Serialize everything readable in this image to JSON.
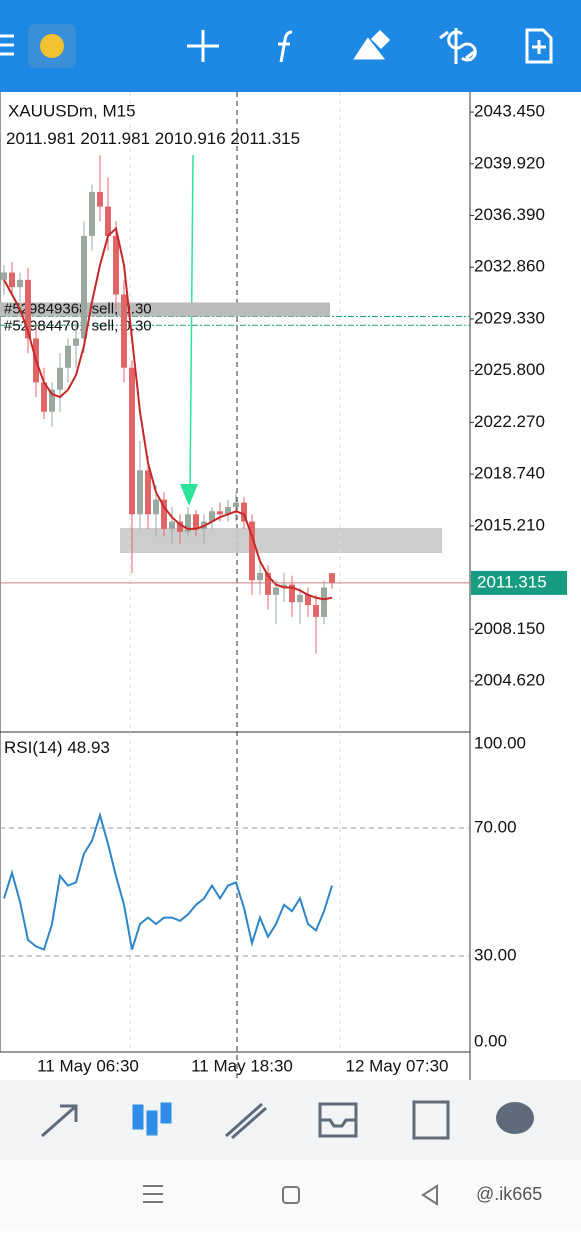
{
  "app": {
    "symbol": "XAUUSDm, M15",
    "orders": [
      {
        "label": "#529849368 sell, 0.30",
        "price": 2029.5
      },
      {
        "label": "#529844701 sell, 0.30",
        "price": 2028.9
      }
    ],
    "watermark": "@.ik665"
  },
  "chart_data": {
    "type": "candlestick",
    "ma_color": "#c62828",
    "up_color": "#9aa89e",
    "down_color": "#e06666",
    "ylim": [
      2001.14,
      2044.82
    ],
    "yticks": [
      {
        "value": 2043.45,
        "label": "2043.450"
      },
      {
        "value": 2039.92,
        "label": "2039.920"
      },
      {
        "value": 2036.39,
        "label": "2036.390"
      },
      {
        "value": 2032.86,
        "label": "2032.860"
      },
      {
        "value": 2029.33,
        "label": "2029.330"
      },
      {
        "value": 2025.8,
        "label": "2025.800"
      },
      {
        "value": 2022.27,
        "label": "2022.270"
      },
      {
        "value": 2018.74,
        "label": "2018.740"
      },
      {
        "value": 2015.21,
        "label": "2015.210"
      },
      {
        "value": 2008.15,
        "label": "2008.150"
      },
      {
        "value": 2004.62,
        "label": "2004.620"
      }
    ],
    "x_labels": [
      "11 May 06:30",
      "11 May 18:30",
      "12 May 07:30"
    ],
    "candles": [
      [
        2032,
        2033,
        2031,
        2032.5
      ],
      [
        2032.5,
        2033.2,
        2031,
        2031.5
      ],
      [
        2031.5,
        2032.5,
        2030.5,
        2032
      ],
      [
        2032,
        2032.8,
        2027,
        2028
      ],
      [
        2028,
        2029,
        2024,
        2025
      ],
      [
        2025,
        2026,
        2022.5,
        2023
      ],
      [
        2023,
        2025,
        2022,
        2024.5
      ],
      [
        2024.5,
        2027,
        2023,
        2026
      ],
      [
        2026,
        2028,
        2025,
        2027.5
      ],
      [
        2027.5,
        2029,
        2026,
        2028
      ],
      [
        2028,
        2036,
        2027,
        2035
      ],
      [
        2035,
        2038.5,
        2034,
        2038
      ],
      [
        2038,
        2040.5,
        2036,
        2037
      ],
      [
        2037,
        2039,
        2034,
        2035
      ],
      [
        2035,
        2036,
        2030,
        2031
      ],
      [
        2031,
        2032,
        2025,
        2026
      ],
      [
        2026,
        2026.5,
        2012,
        2016
      ],
      [
        2016,
        2021,
        2015,
        2019
      ],
      [
        2019,
        2020,
        2015,
        2016
      ],
      [
        2016,
        2018,
        2014.5,
        2017
      ],
      [
        2017,
        2017.5,
        2014.5,
        2015
      ],
      [
        2015,
        2016.5,
        2014,
        2015.5
      ],
      [
        2015.5,
        2016,
        2014,
        2014.8
      ],
      [
        2014.8,
        2016.5,
        2014.5,
        2016
      ],
      [
        2016,
        2016.3,
        2014.5,
        2015
      ],
      [
        2015,
        2016,
        2014,
        2015.5
      ],
      [
        2015.5,
        2016.5,
        2015,
        2016.2
      ],
      [
        2016.2,
        2016.8,
        2015.5,
        2016
      ],
      [
        2016,
        2017,
        2015.5,
        2016.5
      ],
      [
        2016.5,
        2017.5,
        2015.5,
        2016.8
      ],
      [
        2016.8,
        2017.2,
        2015,
        2015.5
      ],
      [
        2015.5,
        2016,
        2010.5,
        2011.5
      ],
      [
        2011.5,
        2013,
        2010.5,
        2012
      ],
      [
        2012,
        2012.5,
        2009.5,
        2010.5
      ],
      [
        2010.5,
        2011.5,
        2008.5,
        2011
      ],
      [
        2011,
        2012,
        2010,
        2011.2
      ],
      [
        2011.2,
        2011.8,
        2009,
        2010
      ],
      [
        2010,
        2011,
        2008.5,
        2010.5
      ],
      [
        2010.5,
        2011,
        2009,
        2009.8
      ],
      [
        2009.8,
        2010.5,
        2006.5,
        2009
      ],
      [
        2009,
        2011.5,
        2008.5,
        2011
      ],
      [
        2011.981,
        2011.981,
        2010.916,
        2011.315
      ]
    ],
    "ma": [
      2032,
      2031,
      2030,
      2028.5,
      2026.5,
      2025,
      2024.2,
      2024,
      2024.5,
      2025.5,
      2027.5,
      2030.5,
      2033,
      2035,
      2035.5,
      2033,
      2028,
      2023,
      2019.5,
      2017.5,
      2016.5,
      2015.8,
      2015.3,
      2015,
      2015,
      2015.2,
      2015.5,
      2015.8,
      2016,
      2016.2,
      2016,
      2014.5,
      2012.8,
      2011.8,
      2011.2,
      2011,
      2011,
      2010.8,
      2010.5,
      2010.3,
      2010.2,
      2010.3
    ],
    "rsi": {
      "name": "RSI(14)",
      "current": 48.93,
      "color": "#2c86c9",
      "ylim": [
        0,
        100
      ],
      "yticks": [
        {
          "value": 100,
          "label": "100.00"
        },
        {
          "value": 70,
          "label": "70.00"
        },
        {
          "value": 30,
          "label": "30.00"
        },
        {
          "value": 0,
          "label": "0.00"
        }
      ],
      "values": [
        48,
        56,
        47,
        35,
        33,
        32,
        40,
        55,
        52,
        53,
        62,
        66,
        74,
        65,
        55,
        46,
        32,
        40,
        42,
        40,
        42,
        42,
        41,
        43,
        46,
        48,
        52,
        48,
        52,
        53,
        45,
        34,
        42,
        36,
        40,
        46,
        44,
        48,
        40,
        38,
        44,
        52
      ]
    }
  }
}
